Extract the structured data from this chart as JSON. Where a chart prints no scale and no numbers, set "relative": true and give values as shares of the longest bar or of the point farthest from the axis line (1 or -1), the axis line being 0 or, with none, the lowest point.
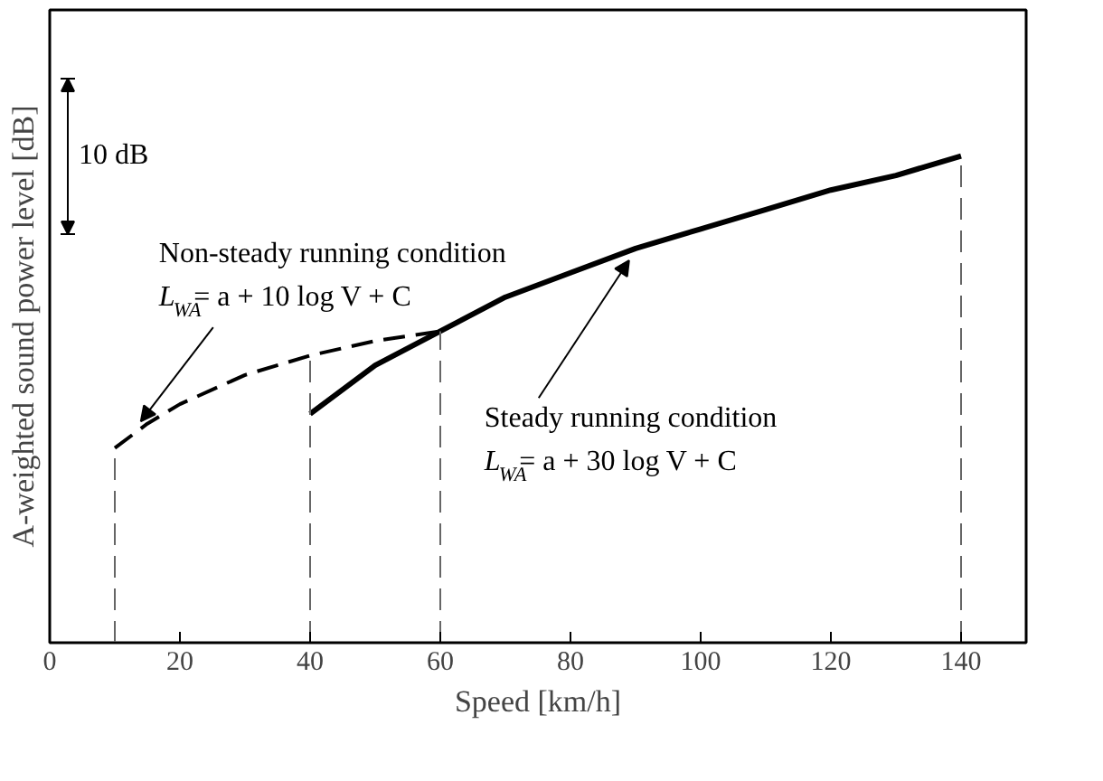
{
  "chart_data": {
    "type": "line",
    "relative": true,
    "xlabel": "Speed [km/h]",
    "ylabel": "A-weighted sound power level [dB]",
    "xlim": [
      0,
      150
    ],
    "xticks": [
      0,
      20,
      40,
      60,
      80,
      100,
      120,
      140
    ],
    "tick_labels": "x",
    "grid": false,
    "series": [
      {
        "color": "#000000",
        "line_style": "solid",
        "x": [
          40,
          50,
          60,
          70,
          80,
          90,
          100,
          110,
          120,
          130,
          140
        ],
        "values": [
          0.47,
          0.57,
          0.64,
          0.71,
          0.76,
          0.81,
          0.85,
          0.89,
          0.93,
          0.96,
          1.0
        ]
      },
      {
        "color": "#000000",
        "line_style": "dashed",
        "x": [
          10,
          15,
          20,
          30,
          40,
          50,
          60
        ],
        "values": [
          0.4,
          0.45,
          0.49,
          0.55,
          0.59,
          0.62,
          0.64
        ]
      }
    ],
    "ref_lines": [
      {
        "axis": "x",
        "value": 10,
        "color": "#666666",
        "line_style": "dashed"
      },
      {
        "axis": "x",
        "value": 40,
        "color": "#666666",
        "line_style": "dashed"
      },
      {
        "axis": "x",
        "value": 60,
        "color": "#666666",
        "line_style": "dashed"
      },
      {
        "axis": "x",
        "value": 140,
        "color": "#666666",
        "line_style": "dashed"
      }
    ],
    "annotations": [
      "10 dB",
      "Non-steady running condition",
      {
        "text": "L$_{WA}$= a + 10 log V + C",
        "x": 14,
        "y": 0.44
      },
      {
        "text": "Steady running condition",
        "x": 89,
        "y": 0.8
      },
      "L$_{WA}$= a + 30 log V + C"
    ]
  }
}
